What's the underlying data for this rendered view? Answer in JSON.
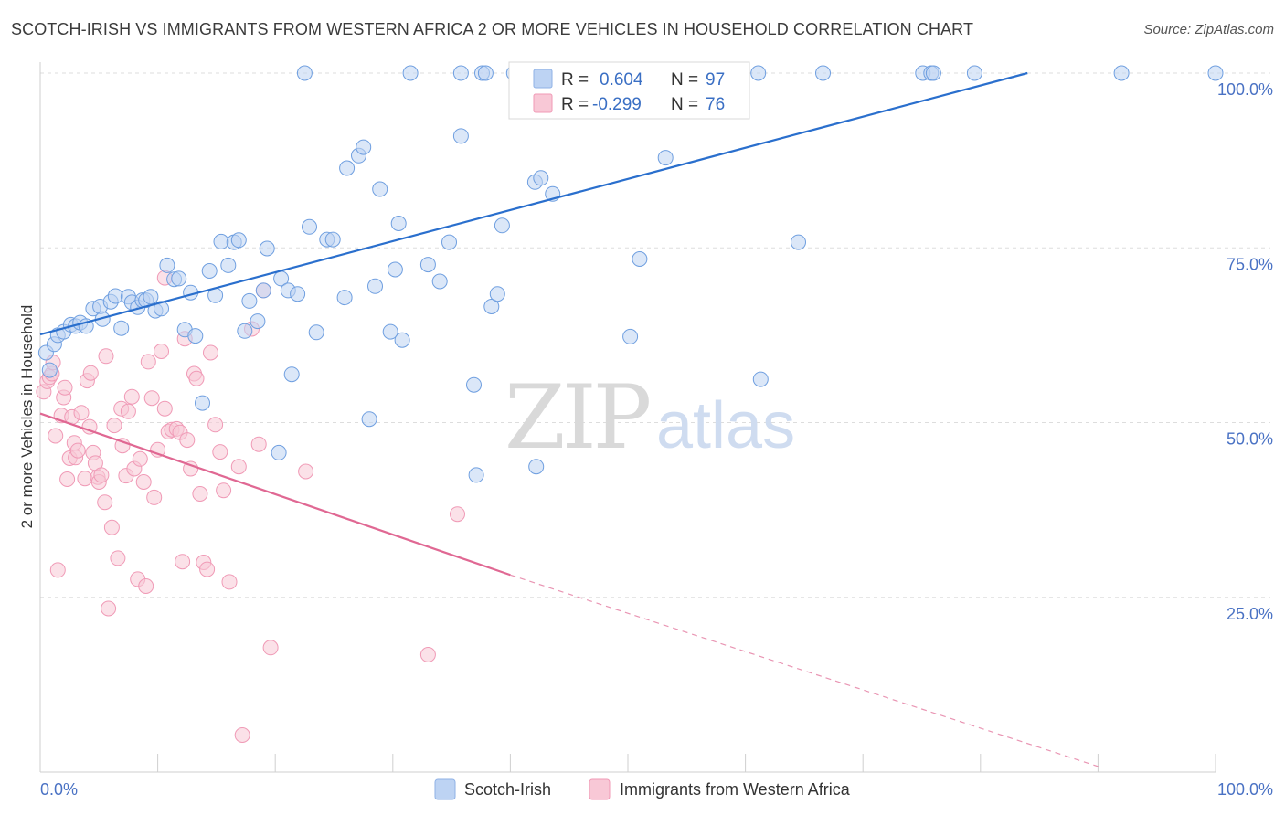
{
  "title": "SCOTCH-IRISH VS IMMIGRANTS FROM WESTERN AFRICA 2 OR MORE VEHICLES IN HOUSEHOLD CORRELATION CHART",
  "source": "Source: ZipAtlas.com",
  "watermark": {
    "zip": "ZIP",
    "atlas": "atlas"
  },
  "legend": {
    "r_label": "R =",
    "n_label": "N =",
    "rows": [
      {
        "r": "0.604",
        "n": "97"
      },
      {
        "r": "-0.299",
        "n": "76"
      }
    ]
  },
  "chart_data": {
    "type": "scatter",
    "title": "SCOTCH-IRISH VS IMMIGRANTS FROM WESTERN AFRICA 2 OR MORE VEHICLES IN HOUSEHOLD CORRELATION CHART",
    "xlabel": "",
    "ylabel": "2 or more Vehicles in Household",
    "xlim": [
      0,
      100
    ],
    "ylim": [
      0,
      102
    ],
    "x_tick_labels": [
      "0.0%",
      "100.0%"
    ],
    "y_ticks": [
      25,
      50,
      75,
      100
    ],
    "y_tick_labels": [
      "25.0%",
      "50.0%",
      "75.0%",
      "100.0%"
    ],
    "grid": true,
    "legend_position": "top-center",
    "colors": {
      "scotch_irish": "#6f9fe0",
      "western_africa": "#f09ab6",
      "blue_line": "#2a6fcd",
      "pink_line": "#e06893"
    },
    "series": [
      {
        "name": "Scotch-Irish",
        "r": 0.604,
        "n": 97,
        "trend": {
          "x0": 0,
          "y0": 62.6,
          "x1": 84.0,
          "y1": 100.0
        },
        "points": [
          [
            0.5,
            60.0
          ],
          [
            1.2,
            61.2
          ],
          [
            1.5,
            62.5
          ],
          [
            2.0,
            63.0
          ],
          [
            2.6,
            64.0
          ],
          [
            3.0,
            63.8
          ],
          [
            3.4,
            64.3
          ],
          [
            3.9,
            63.8
          ],
          [
            4.5,
            66.3
          ],
          [
            5.1,
            66.6
          ],
          [
            5.3,
            64.8
          ],
          [
            6.0,
            67.3
          ],
          [
            6.4,
            68.1
          ],
          [
            6.9,
            63.5
          ],
          [
            7.5,
            68.0
          ],
          [
            7.8,
            67.2
          ],
          [
            8.3,
            66.5
          ],
          [
            8.7,
            67.5
          ],
          [
            9.0,
            67.5
          ],
          [
            9.4,
            68.0
          ],
          [
            9.8,
            66.0
          ],
          [
            10.3,
            66.3
          ],
          [
            10.8,
            72.5
          ],
          [
            11.4,
            70.5
          ],
          [
            11.8,
            70.6
          ],
          [
            12.3,
            63.3
          ],
          [
            12.8,
            68.6
          ],
          [
            13.2,
            62.4
          ],
          [
            13.8,
            52.8
          ],
          [
            14.4,
            71.7
          ],
          [
            14.9,
            68.2
          ],
          [
            15.4,
            75.9
          ],
          [
            16.0,
            72.5
          ],
          [
            16.5,
            75.8
          ],
          [
            16.9,
            76.1
          ],
          [
            17.4,
            63.1
          ],
          [
            17.8,
            67.4
          ],
          [
            18.5,
            64.5
          ],
          [
            19.0,
            68.9
          ],
          [
            19.3,
            74.9
          ],
          [
            20.3,
            45.7
          ],
          [
            20.5,
            70.6
          ],
          [
            21.1,
            68.9
          ],
          [
            21.4,
            56.9
          ],
          [
            21.9,
            68.4
          ],
          [
            22.5,
            100.0
          ],
          [
            22.9,
            78.0
          ],
          [
            23.5,
            62.9
          ],
          [
            24.4,
            76.2
          ],
          [
            24.9,
            76.2
          ],
          [
            25.9,
            67.9
          ],
          [
            26.1,
            86.4
          ],
          [
            27.1,
            88.2
          ],
          [
            27.5,
            89.4
          ],
          [
            28.0,
            50.5
          ],
          [
            28.5,
            69.5
          ],
          [
            28.9,
            83.4
          ],
          [
            29.8,
            63.0
          ],
          [
            30.2,
            71.9
          ],
          [
            30.5,
            78.5
          ],
          [
            30.8,
            61.8
          ],
          [
            31.5,
            100.0
          ],
          [
            33.0,
            72.6
          ],
          [
            34.0,
            70.2
          ],
          [
            34.8,
            75.8
          ],
          [
            35.8,
            91.0
          ],
          [
            35.8,
            100.0
          ],
          [
            36.9,
            55.4
          ],
          [
            37.1,
            42.5
          ],
          [
            37.6,
            100.0
          ],
          [
            37.9,
            100.0
          ],
          [
            38.4,
            66.6
          ],
          [
            38.9,
            68.4
          ],
          [
            39.3,
            78.2
          ],
          [
            40.3,
            100.0
          ],
          [
            40.8,
            100.0
          ],
          [
            42.1,
            84.4
          ],
          [
            42.2,
            43.7
          ],
          [
            42.6,
            85.0
          ],
          [
            43.6,
            82.7
          ],
          [
            49.5,
            100.0
          ],
          [
            50.2,
            62.3
          ],
          [
            51.0,
            73.4
          ],
          [
            52.5,
            100.0
          ],
          [
            53.2,
            87.9
          ],
          [
            56.7,
            100.0
          ],
          [
            61.1,
            100.0
          ],
          [
            61.3,
            56.2
          ],
          [
            64.5,
            75.8
          ],
          [
            66.6,
            100.0
          ],
          [
            75.1,
            100.0
          ],
          [
            75.8,
            100.0
          ],
          [
            76.0,
            100.0
          ],
          [
            79.5,
            100.0
          ],
          [
            92.0,
            100.0
          ],
          [
            100.0,
            100.0
          ],
          [
            0.8,
            57.5
          ]
        ]
      },
      {
        "name": "Immigrants from Western Africa",
        "r": -0.299,
        "n": 76,
        "trend": {
          "x0": 0,
          "y0": 51.3,
          "x1": 40.0,
          "y1": 28.2,
          "dashed_to": {
            "x": 90.0,
            "y": 0.8
          }
        },
        "points": [
          [
            0.3,
            54.4
          ],
          [
            0.6,
            55.9
          ],
          [
            0.8,
            56.5
          ],
          [
            1.0,
            57.0
          ],
          [
            1.1,
            58.6
          ],
          [
            1.3,
            48.1
          ],
          [
            1.5,
            28.9
          ],
          [
            1.8,
            51.0
          ],
          [
            2.0,
            53.6
          ],
          [
            2.1,
            55.0
          ],
          [
            2.3,
            41.9
          ],
          [
            2.5,
            44.9
          ],
          [
            2.7,
            50.8
          ],
          [
            2.9,
            47.1
          ],
          [
            3.0,
            45.0
          ],
          [
            3.2,
            46.0
          ],
          [
            3.5,
            51.4
          ],
          [
            3.8,
            42.0
          ],
          [
            4.0,
            56.0
          ],
          [
            4.2,
            49.4
          ],
          [
            4.3,
            57.1
          ],
          [
            4.5,
            45.7
          ],
          [
            4.7,
            44.2
          ],
          [
            4.9,
            42.2
          ],
          [
            5.0,
            41.5
          ],
          [
            5.2,
            42.5
          ],
          [
            5.5,
            38.6
          ],
          [
            5.6,
            59.5
          ],
          [
            5.8,
            23.4
          ],
          [
            6.1,
            35.0
          ],
          [
            6.3,
            49.6
          ],
          [
            6.6,
            30.6
          ],
          [
            6.9,
            52.0
          ],
          [
            7.0,
            46.7
          ],
          [
            7.3,
            42.4
          ],
          [
            7.5,
            51.6
          ],
          [
            7.8,
            53.7
          ],
          [
            8.0,
            43.4
          ],
          [
            8.3,
            27.6
          ],
          [
            8.5,
            44.8
          ],
          [
            8.8,
            41.5
          ],
          [
            9.0,
            26.6
          ],
          [
            9.2,
            58.7
          ],
          [
            9.5,
            53.5
          ],
          [
            9.7,
            39.3
          ],
          [
            10.0,
            46.1
          ],
          [
            10.3,
            60.2
          ],
          [
            10.6,
            70.7
          ],
          [
            10.9,
            48.7
          ],
          [
            11.2,
            49.0
          ],
          [
            11.6,
            49.1
          ],
          [
            11.9,
            48.6
          ],
          [
            12.1,
            30.1
          ],
          [
            12.3,
            62.0
          ],
          [
            12.5,
            47.5
          ],
          [
            12.8,
            43.4
          ],
          [
            13.1,
            57.0
          ],
          [
            13.3,
            56.3
          ],
          [
            13.6,
            39.8
          ],
          [
            13.9,
            30.0
          ],
          [
            14.2,
            29.0
          ],
          [
            14.5,
            60.0
          ],
          [
            14.9,
            49.7
          ],
          [
            15.3,
            45.8
          ],
          [
            15.6,
            40.3
          ],
          [
            16.1,
            27.2
          ],
          [
            16.9,
            43.7
          ],
          [
            17.2,
            5.3
          ],
          [
            18.0,
            63.4
          ],
          [
            18.6,
            46.9
          ],
          [
            19.0,
            68.9
          ],
          [
            19.6,
            17.8
          ],
          [
            22.6,
            43.0
          ],
          [
            33.0,
            16.8
          ],
          [
            35.5,
            36.9
          ],
          [
            10.6,
            52.0
          ]
        ]
      }
    ]
  }
}
